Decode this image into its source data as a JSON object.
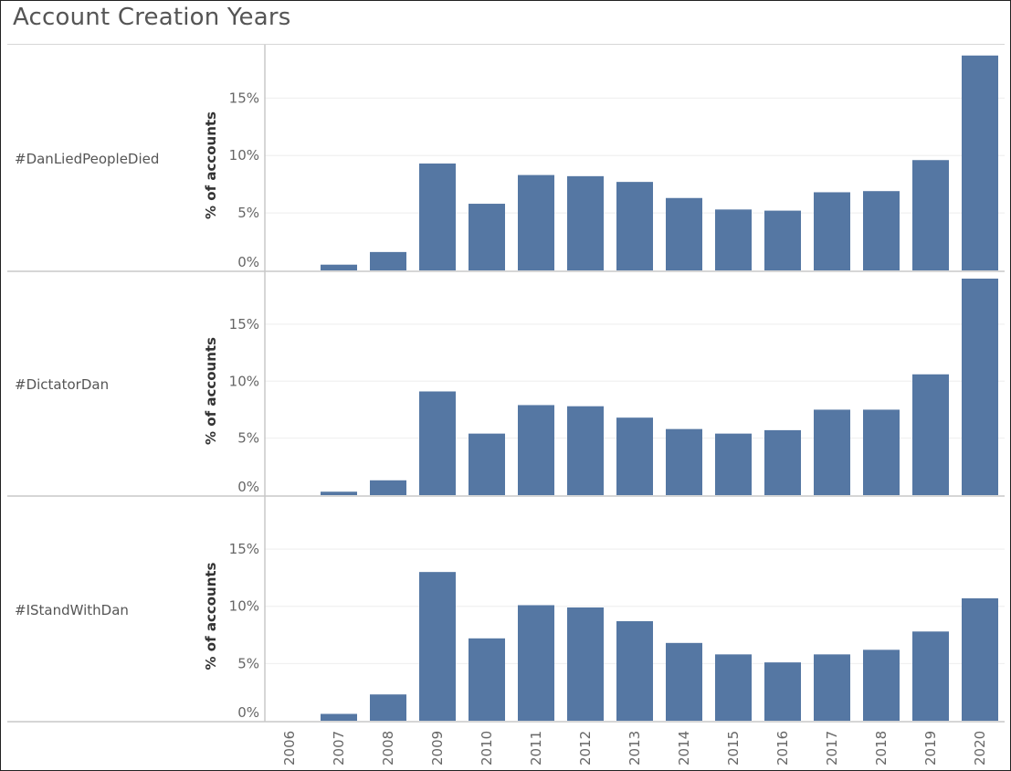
{
  "title": "Account Creation Years",
  "chart_data": {
    "type": "bar",
    "categories": [
      "2006",
      "2007",
      "2008",
      "2009",
      "2010",
      "2011",
      "2012",
      "2013",
      "2014",
      "2015",
      "2016",
      "2017",
      "2018",
      "2019",
      "2020"
    ],
    "ylabel": "% of accounts",
    "xlabel": "",
    "ylim": [
      0,
      19
    ],
    "yticks": [
      "0%",
      "5%",
      "10%",
      "15%"
    ],
    "ytick_values": [
      0,
      5,
      10,
      15
    ],
    "bar_color": "#5577a3",
    "series": [
      {
        "name": "#DanLiedPeopleDied",
        "values": [
          0,
          0.5,
          1.6,
          9.3,
          5.8,
          8.3,
          8.2,
          7.7,
          6.3,
          5.3,
          5.2,
          6.8,
          6.9,
          9.6,
          18.7
        ]
      },
      {
        "name": "#DictatorDan",
        "values": [
          0,
          0.3,
          1.3,
          9.1,
          5.4,
          7.9,
          7.8,
          6.8,
          5.8,
          5.4,
          5.7,
          7.5,
          7.5,
          10.6,
          19.0
        ]
      },
      {
        "name": "#IStandWithDan",
        "values": [
          0,
          0.6,
          2.3,
          13.0,
          7.2,
          10.1,
          9.9,
          8.7,
          6.8,
          5.8,
          5.1,
          5.8,
          6.2,
          7.8,
          10.7
        ]
      }
    ]
  }
}
